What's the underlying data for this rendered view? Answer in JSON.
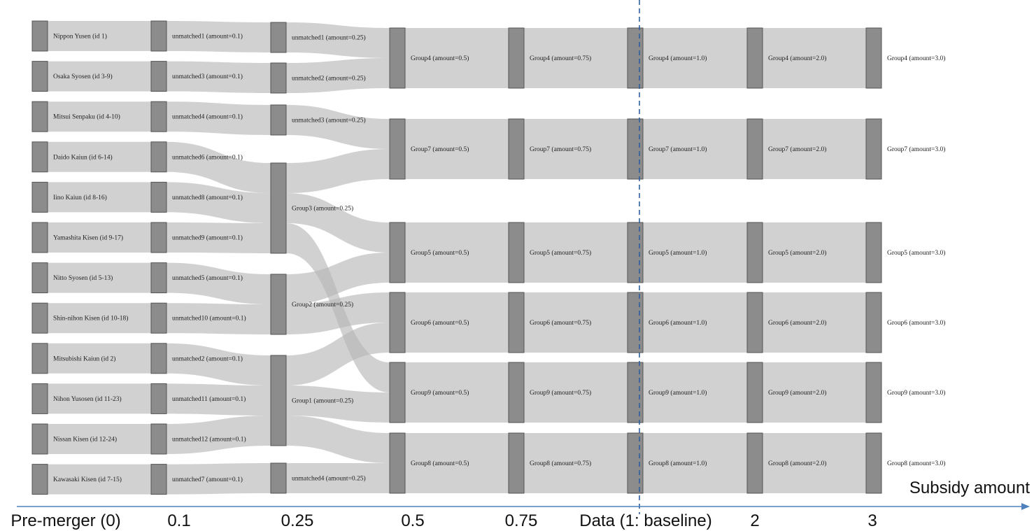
{
  "colors": {
    "node_fill": "#8c8c8c",
    "node_stroke": "#555555",
    "link": "#b4b4b4",
    "axis": "#4f81bd",
    "baseline": "#2e5e9e"
  },
  "axis": {
    "title": "Subsidy amount",
    "stages": [
      "Pre-merger (0)",
      "0.1",
      "0.25",
      "0.5",
      "0.75",
      "Data (1: baseline)",
      "2",
      "3"
    ],
    "baseline_stage": 5
  },
  "stages": [
    {
      "nodes": [
        "Nippon Yusen (id 1)",
        "Osaka Syosen (id 3-9)",
        "Mitsui Senpaku (id 4-10)",
        "Daido Kaiun (id 6-14)",
        "Iino Kaiun (id 8-16)",
        "Yamashita Kisen (id 9-17)",
        "Nitto Syosen (id 5-13)",
        "Shin-nihon Kisen (id 10-18)",
        "Mitsubishi Kaiun (id 2)",
        "Nihon Yusosen (id 11-23)",
        "Nissan Kisen (id 12-24)",
        "Kawasaki Kisen (id 7-15)"
      ]
    },
    {
      "nodes": [
        "unmatched1 (amount=0.1)",
        "unmatched3 (amount=0.1)",
        "unmatched4 (amount=0.1)",
        "unmatched6 (amount=0.1)",
        "unmatched8 (amount=0.1)",
        "unmatched9 (amount=0.1)",
        "unmatched5 (amount=0.1)",
        "unmatched10 (amount=0.1)",
        "unmatched2 (amount=0.1)",
        "unmatched11 (amount=0.1)",
        "unmatched12 (amount=0.1)",
        "unmatched7 (amount=0.1)"
      ]
    },
    {
      "nodes": [
        "unmatched1 (amount=0.25)",
        "unmatched2 (amount=0.25)",
        "unmatched3 (amount=0.25)",
        "Group3 (amount=0.25)",
        "Group2 (amount=0.25)",
        "Group1 (amount=0.25)",
        "unmatched4 (amount=0.25)"
      ]
    },
    {
      "nodes": [
        "Group4 (amount=0.5)",
        "Group7 (amount=0.5)",
        "Group5 (amount=0.5)",
        "Group6 (amount=0.5)",
        "Group9 (amount=0.5)",
        "Group8 (amount=0.5)"
      ]
    },
    {
      "nodes": [
        "Group4 (amount=0.75)",
        "Group7 (amount=0.75)",
        "Group5 (amount=0.75)",
        "Group6 (amount=0.75)",
        "Group9 (amount=0.75)",
        "Group8 (amount=0.75)"
      ]
    },
    {
      "nodes": [
        "Group4 (amount=1.0)",
        "Group7 (amount=1.0)",
        "Group5 (amount=1.0)",
        "Group6 (amount=1.0)",
        "Group9 (amount=1.0)",
        "Group8 (amount=1.0)"
      ]
    },
    {
      "nodes": [
        "Group4 (amount=2.0)",
        "Group7 (amount=2.0)",
        "Group5 (amount=2.0)",
        "Group6 (amount=2.0)",
        "Group9 (amount=2.0)",
        "Group8 (amount=2.0)"
      ]
    },
    {
      "nodes": [
        "Group4 (amount=3.0)",
        "Group7 (amount=3.0)",
        "Group5 (amount=3.0)",
        "Group6 (amount=3.0)",
        "Group9 (amount=3.0)",
        "Group8 (amount=3.0)"
      ]
    }
  ],
  "links": [
    {
      "source": "0:0",
      "target": "1:0"
    },
    {
      "source": "0:1",
      "target": "1:1"
    },
    {
      "source": "0:2",
      "target": "1:2"
    },
    {
      "source": "0:3",
      "target": "1:3"
    },
    {
      "source": "0:4",
      "target": "1:4"
    },
    {
      "source": "0:5",
      "target": "1:5"
    },
    {
      "source": "0:6",
      "target": "1:6"
    },
    {
      "source": "0:7",
      "target": "1:7"
    },
    {
      "source": "0:8",
      "target": "1:8"
    },
    {
      "source": "0:9",
      "target": "1:9"
    },
    {
      "source": "0:10",
      "target": "1:10"
    },
    {
      "source": "0:11",
      "target": "1:11"
    },
    {
      "source": "1:0",
      "target": "2:0"
    },
    {
      "source": "1:1",
      "target": "2:1"
    },
    {
      "source": "1:2",
      "target": "2:2"
    },
    {
      "source": "1:3",
      "target": "2:3"
    },
    {
      "source": "1:4",
      "target": "2:3"
    },
    {
      "source": "1:5",
      "target": "2:3"
    },
    {
      "source": "1:6",
      "target": "2:4"
    },
    {
      "source": "1:7",
      "target": "2:4"
    },
    {
      "source": "1:8",
      "target": "2:5"
    },
    {
      "source": "1:9",
      "target": "2:5"
    },
    {
      "source": "1:10",
      "target": "2:5"
    },
    {
      "source": "1:11",
      "target": "2:6"
    },
    {
      "source": "2:0",
      "target": "3:0"
    },
    {
      "source": "2:1",
      "target": "3:0"
    },
    {
      "source": "2:2",
      "target": "3:1"
    },
    {
      "source": "2:3",
      "target": "3:1"
    },
    {
      "source": "2:3",
      "target": "3:2"
    },
    {
      "source": "2:3",
      "target": "3:4"
    },
    {
      "source": "2:4",
      "target": "3:2"
    },
    {
      "source": "2:4",
      "target": "3:3"
    },
    {
      "source": "2:5",
      "target": "3:3"
    },
    {
      "source": "2:5",
      "target": "3:4"
    },
    {
      "source": "2:5",
      "target": "3:5"
    },
    {
      "source": "2:6",
      "target": "3:5"
    },
    {
      "source": "3:0",
      "target": "4:0"
    },
    {
      "source": "3:1",
      "target": "4:1"
    },
    {
      "source": "3:2",
      "target": "4:2"
    },
    {
      "source": "3:3",
      "target": "4:3"
    },
    {
      "source": "3:4",
      "target": "4:4"
    },
    {
      "source": "3:5",
      "target": "4:5"
    },
    {
      "source": "4:0",
      "target": "5:0"
    },
    {
      "source": "4:1",
      "target": "5:1"
    },
    {
      "source": "4:2",
      "target": "5:2"
    },
    {
      "source": "4:3",
      "target": "5:3"
    },
    {
      "source": "4:4",
      "target": "5:4"
    },
    {
      "source": "4:5",
      "target": "5:5"
    },
    {
      "source": "5:0",
      "target": "6:0"
    },
    {
      "source": "5:1",
      "target": "6:1"
    },
    {
      "source": "5:2",
      "target": "6:2"
    },
    {
      "source": "5:3",
      "target": "6:3"
    },
    {
      "source": "5:4",
      "target": "6:4"
    },
    {
      "source": "5:5",
      "target": "6:5"
    },
    {
      "source": "6:0",
      "target": "7:0"
    },
    {
      "source": "6:1",
      "target": "7:1"
    },
    {
      "source": "6:2",
      "target": "7:2"
    },
    {
      "source": "6:3",
      "target": "7:3"
    },
    {
      "source": "6:4",
      "target": "7:4"
    },
    {
      "source": "6:5",
      "target": "7:5"
    }
  ]
}
